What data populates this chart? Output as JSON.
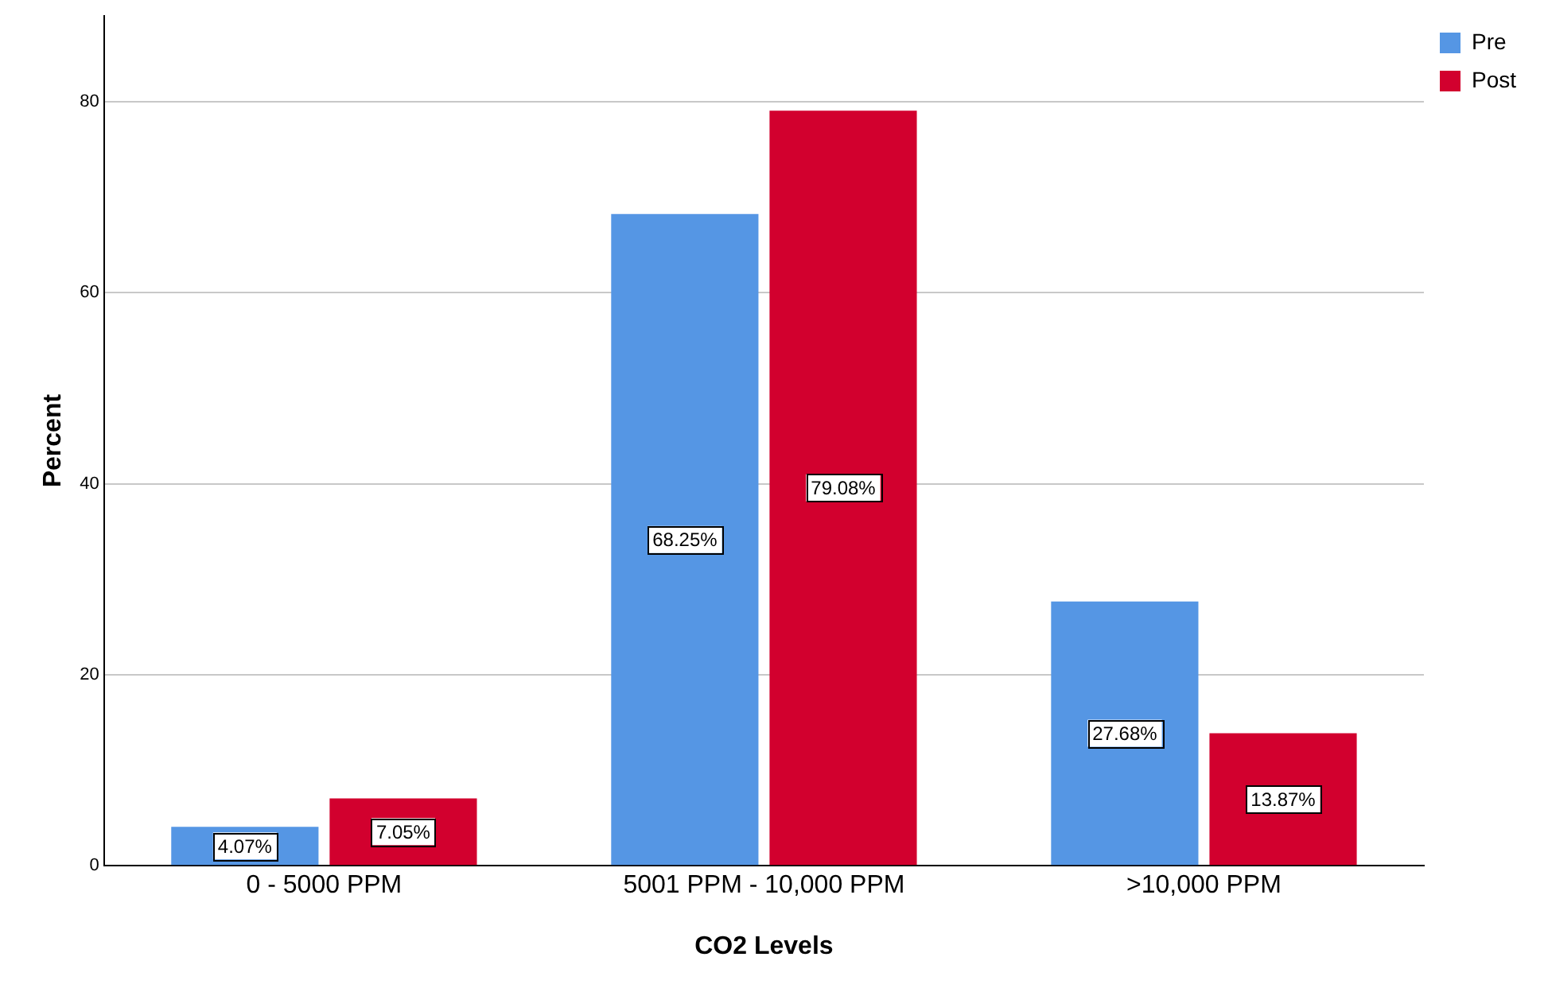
{
  "chart_data": {
    "type": "bar",
    "xlabel": "CO2 Levels",
    "ylabel": "Percent",
    "categories": [
      "0 - 5000 PPM",
      "5001 PPM - 10,000 PPM",
      ">10,000 PPM"
    ],
    "series": [
      {
        "name": "Pre",
        "color": "#5596e4",
        "values": [
          4.07,
          68.25,
          27.68
        ],
        "value_labels": [
          "4.07%",
          "68.25%",
          "27.68%"
        ]
      },
      {
        "name": "Post",
        "color": "#d2002e",
        "values": [
          7.05,
          79.08,
          13.87
        ],
        "value_labels": [
          "7.05%",
          "79.08%",
          "13.87%"
        ]
      }
    ],
    "ylim": [
      0,
      89
    ],
    "yticks": [
      0,
      20,
      40,
      60,
      80
    ],
    "grid": "y",
    "legend": "top right"
  }
}
